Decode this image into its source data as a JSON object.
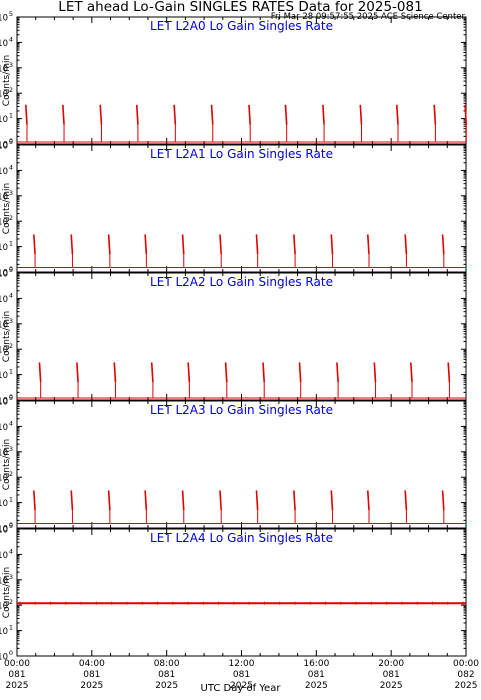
{
  "header": {
    "title": "LET ahead Lo-Gain SINGLES RATES Data for 2025-081",
    "timestamp": "Fri Mar 28 09:57:55 2025 ACE Science Center"
  },
  "chart_data": [
    {
      "type": "scatter",
      "title": "LET L2A0 Lo Gain Singles Rate",
      "ylabel": "Counts/min",
      "yscale": "log",
      "ylim": [
        1,
        100000
      ],
      "xlim": [
        0,
        24
      ],
      "grid": false,
      "series": [
        {
          "color": "#e00000",
          "x": [
            0.47,
            2.45,
            4.45,
            6.4,
            8.4,
            10.4,
            12.4,
            14.35,
            16.35,
            18.35,
            20.3,
            22.3,
            23.95
          ],
          "y": [
            35,
            35,
            35,
            35,
            35,
            35,
            35,
            35,
            35,
            35,
            35,
            35,
            35
          ],
          "baseline": 1.2
        }
      ]
    },
    {
      "type": "scatter",
      "title": "LET L2A1 Lo Gain Singles Rate",
      "ylabel": "Counts/min",
      "yscale": "log",
      "ylim": [
        1,
        100000
      ],
      "xlim": [
        0,
        24
      ],
      "grid": false,
      "series": [
        {
          "color": "#e00000",
          "x": [
            0.9,
            2.9,
            4.9,
            6.85,
            8.85,
            10.85,
            12.8,
            14.8,
            16.8,
            18.75,
            20.75,
            22.75
          ],
          "y": [
            30,
            30,
            30,
            30,
            30,
            30,
            30,
            30,
            30,
            30,
            30,
            30
          ],
          "baseline": 1.5
        }
      ]
    },
    {
      "type": "scatter",
      "title": "LET L2A2 Lo Gain Singles Rate",
      "ylabel": "Counts/min",
      "yscale": "log",
      "ylim": [
        1,
        100000
      ],
      "xlim": [
        0,
        24
      ],
      "grid": false,
      "series": [
        {
          "color": "#e00000",
          "x": [
            1.2,
            3.2,
            5.2,
            7.2,
            9.15,
            11.15,
            13.15,
            15.1,
            17.1,
            19.1,
            21.05,
            23.05
          ],
          "y": [
            30,
            30,
            30,
            30,
            30,
            30,
            30,
            30,
            30,
            30,
            30,
            30
          ],
          "baseline": 1.2
        }
      ]
    },
    {
      "type": "scatter",
      "title": "LET L2A3 Lo Gain Singles Rate",
      "ylabel": "Counts/min",
      "yscale": "log",
      "ylim": [
        1,
        100000
      ],
      "xlim": [
        0,
        24
      ],
      "grid": false,
      "series": [
        {
          "color": "#e00000",
          "x": [
            0.9,
            2.9,
            4.9,
            6.85,
            8.85,
            10.85,
            12.8,
            14.8,
            16.8,
            18.75,
            20.75,
            22.75
          ],
          "y": [
            30,
            30,
            30,
            30,
            30,
            30,
            30,
            30,
            30,
            30,
            30,
            30
          ],
          "baseline": 1.5
        }
      ]
    },
    {
      "type": "line",
      "title": "LET L2A4 Lo Gain Singles Rate",
      "ylabel": "Counts/min",
      "yscale": "log",
      "ylim": [
        1,
        100000
      ],
      "xlim": [
        0,
        24
      ],
      "grid": false,
      "series": [
        {
          "color": "#e00000",
          "constant": 120
        }
      ]
    }
  ],
  "x_axis": {
    "label": "UTC Day of Year",
    "ticks": [
      {
        "x": 0,
        "time": "00:00",
        "day": "081",
        "year": "2025"
      },
      {
        "x": 4,
        "time": "04:00",
        "day": "081",
        "year": "2025"
      },
      {
        "x": 8,
        "time": "08:00",
        "day": "081",
        "year": "2025"
      },
      {
        "x": 12,
        "time": "12:00",
        "day": "081",
        "year": "2025"
      },
      {
        "x": 16,
        "time": "16:00",
        "day": "081",
        "year": "2025"
      },
      {
        "x": 20,
        "time": "20:00",
        "day": "081",
        "year": "2025"
      },
      {
        "x": 24,
        "time": "00:00",
        "day": "082",
        "year": "2025"
      }
    ]
  },
  "y_axis": {
    "ticks": [
      {
        "value": 1,
        "label": "10",
        "exp": "0"
      },
      {
        "value": 10,
        "label": "10",
        "exp": "1"
      },
      {
        "value": 100,
        "label": "10",
        "exp": "2"
      },
      {
        "value": 1000,
        "label": "10",
        "exp": "3"
      },
      {
        "value": 10000,
        "label": "10",
        "exp": "4"
      },
      {
        "value": 100000,
        "label": "10",
        "exp": "5"
      }
    ]
  },
  "colors": {
    "title": "#0000e0",
    "data": "#e00000",
    "axis": "#000000"
  }
}
